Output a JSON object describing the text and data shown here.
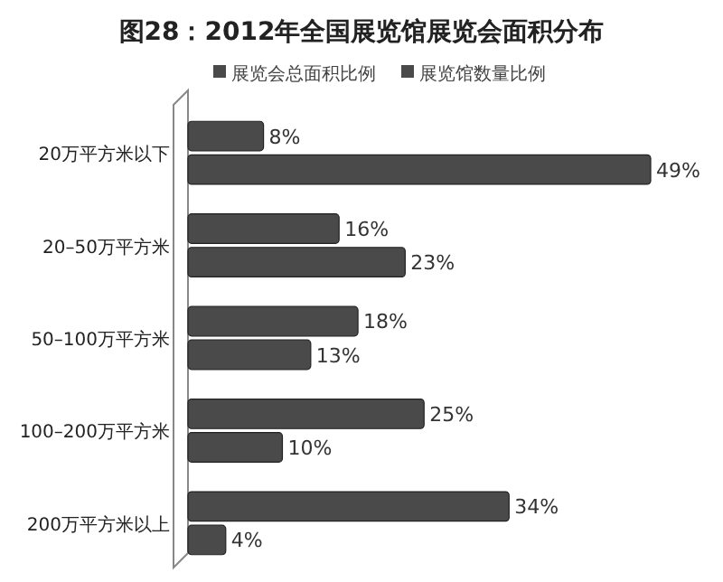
{
  "chart_data": {
    "type": "bar",
    "orientation": "horizontal",
    "title": "图28：2012年全国展览馆展览会面积分布",
    "categories": [
      "20万平方米以下",
      "20–50万平方米",
      "50–100万平方米",
      "100–200万平方米",
      "200万平方米以上"
    ],
    "series": [
      {
        "name": "展览会总面积比例",
        "color": "#4a4a4a",
        "values": [
          8,
          16,
          18,
          25,
          34
        ],
        "value_labels": [
          "8%",
          "16%",
          "18%",
          "25%",
          "34%"
        ]
      },
      {
        "name": "展览馆数量比例",
        "color": "#4a4a4a",
        "values": [
          49,
          23,
          13,
          10,
          4
        ],
        "value_labels": [
          "49%",
          "23%",
          "13%",
          "10%",
          "4%"
        ]
      }
    ],
    "legend": "top",
    "grid": false
  }
}
